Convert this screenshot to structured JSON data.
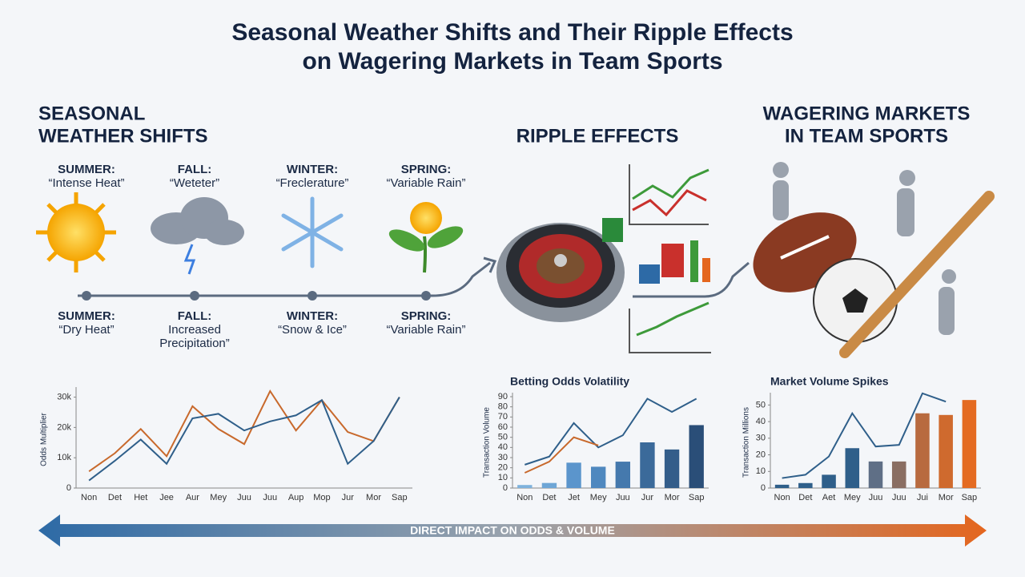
{
  "title": [
    "Seasonal Weather Shifts and Their Ripple Effects",
    "on Wagering Markets in Team Sports"
  ],
  "sections": [
    {
      "heading": [
        "SEASONAL",
        "WEATHER SHIFTS"
      ]
    },
    {
      "heading": [
        "RIPPLE EFFECTS"
      ]
    },
    {
      "heading": [
        "WAGERING MARKETS",
        "IN TEAM SPORTS"
      ]
    }
  ],
  "seasons": [
    {
      "top": [
        "SUMMER:",
        "“Intense Heat”"
      ],
      "bottom": [
        "SUMMER:",
        "“Dry Heat”"
      ]
    },
    {
      "top": [
        "FALL:",
        "“Weteter”"
      ],
      "bottom": [
        "FALL:",
        "Increased",
        "Precipitation”"
      ]
    },
    {
      "top": [
        "WINTER:",
        "“Frecleraturе”"
      ],
      "bottom": [
        "WINTER:",
        "“Snow & Ice”"
      ]
    },
    {
      "top": [
        "SPRING:",
        "“Variable Rain”"
      ],
      "bottom": [
        "SPRING:",
        "“Variable Rain”"
      ]
    }
  ],
  "banner": "DIRECT IMPACT ON ODDS & VOLUME",
  "chart_data": [
    {
      "type": "line",
      "ylabel": "Odds Multiplier",
      "categories": [
        "Non",
        "Det",
        "Het",
        "Jee",
        "Aur",
        "Mey",
        "Juu",
        "Juu",
        "Aup",
        "Mop",
        "Jur",
        "Mor",
        "Sap"
      ],
      "series": [
        {
          "color": "#c8692c",
          "values": [
            5500,
            11500,
            19500,
            10500,
            27000,
            19500,
            14500,
            32000,
            19000,
            29000,
            18500,
            15500,
            30000
          ]
        },
        {
          "color": "#2f5f8a",
          "values": [
            2500,
            9000,
            16000,
            8000,
            23000,
            24500,
            19000,
            22000,
            24000,
            29000,
            8000,
            15500,
            30000
          ]
        }
      ],
      "ylim": [
        0,
        32000
      ],
      "yticks": [
        0,
        {
          "value": 10000,
          "label": "10k"
        },
        {
          "value": 20000,
          "label": "20k"
        },
        {
          "value": 30000,
          "label": "30k"
        }
      ]
    },
    {
      "type": "bar",
      "title": "Betting Odds Volatility",
      "ylabel": "Transaction Volume",
      "categories": [
        "Non",
        "Det",
        "Jet",
        "Mey",
        "Juu",
        "Jur",
        "Mor",
        "Sap"
      ],
      "values": [
        3,
        5,
        25,
        21,
        26,
        45,
        38,
        62
      ],
      "colors": [
        "#7fb2dc",
        "#6ea6d6",
        "#5b95cc",
        "#4f88bf",
        "#4579ad",
        "#3b6a9a",
        "#335d8a",
        "#2a4e78"
      ],
      "series": [
        {
          "type": "line",
          "color": "#2f5f8a",
          "values": [
            23,
            31,
            64,
            40,
            52,
            88,
            75,
            88
          ]
        },
        {
          "type": "line",
          "color": "#c8692c",
          "values": [
            15,
            26,
            50,
            42,
            null,
            null,
            null,
            null
          ]
        }
      ],
      "ylim": [
        0,
        90
      ],
      "yticks": [
        0,
        10,
        20,
        30,
        40,
        50,
        60,
        70,
        80,
        90
      ]
    },
    {
      "type": "bar",
      "title": "Market Volume Spikes",
      "ylabel": "Transaction Millions",
      "categories": [
        "Non",
        "Det",
        "Aet",
        "Mey",
        "Juu",
        "Juu",
        "Jui",
        "Mor",
        "Sap"
      ],
      "values": [
        2,
        3,
        8,
        24,
        16,
        16,
        45,
        44,
        53
      ],
      "colors": [
        "#2f5f8a",
        "#2f5f8a",
        "#2f5f8a",
        "#2f5f8a",
        "#5f6f86",
        "#8a6e62",
        "#b86a3f",
        "#cf6a2e",
        "#e46b22"
      ],
      "series": [
        {
          "type": "line",
          "color": "#2f5f8a",
          "values": [
            6,
            8,
            19,
            45,
            25,
            26,
            57,
            52,
            null
          ]
        }
      ],
      "ylim": [
        0,
        55
      ],
      "yticks": [
        0,
        10,
        20,
        30,
        40,
        50
      ]
    }
  ]
}
